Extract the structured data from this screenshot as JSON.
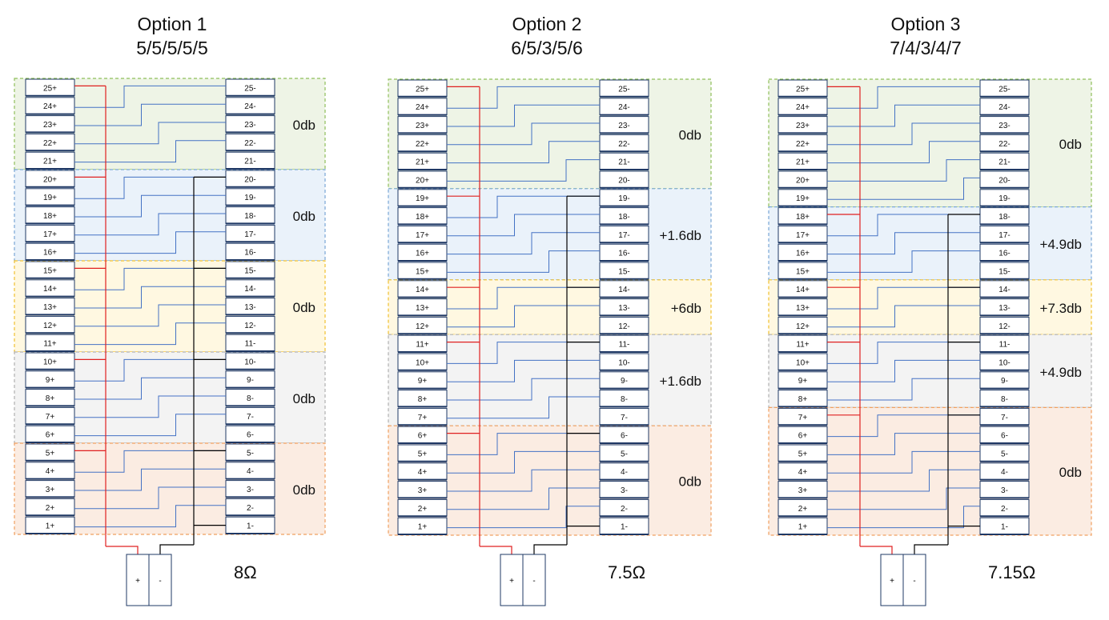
{
  "options": [
    {
      "title": "Option 1",
      "pattern": "5/5/5/5/5",
      "impedance": "8Ω",
      "groups": [
        {
          "size": 5,
          "gain": "0db",
          "color": "green"
        },
        {
          "size": 5,
          "gain": "0db",
          "color": "blue"
        },
        {
          "size": 5,
          "gain": "0db",
          "color": "yellow"
        },
        {
          "size": 5,
          "gain": "0db",
          "color": "gray"
        },
        {
          "size": 5,
          "gain": "0db",
          "color": "orange"
        }
      ]
    },
    {
      "title": "Option 2",
      "pattern": "6/5/3/5/6",
      "impedance": "7.5Ω",
      "groups": [
        {
          "size": 6,
          "gain": "0db",
          "color": "green"
        },
        {
          "size": 5,
          "gain": "+1.6db",
          "color": "blue"
        },
        {
          "size": 3,
          "gain": "+6db",
          "color": "yellow"
        },
        {
          "size": 5,
          "gain": "+1.6db",
          "color": "gray"
        },
        {
          "size": 6,
          "gain": "0db",
          "color": "orange"
        }
      ]
    },
    {
      "title": "Option 3",
      "pattern": "7/4/3/4/7",
      "impedance": "7.15Ω",
      "groups": [
        {
          "size": 7,
          "gain": "0db",
          "color": "green"
        },
        {
          "size": 4,
          "gain": "+4.9db",
          "color": "blue"
        },
        {
          "size": 3,
          "gain": "+7.3db",
          "color": "yellow"
        },
        {
          "size": 4,
          "gain": "+4.9db",
          "color": "gray"
        },
        {
          "size": 7,
          "gain": "0db",
          "color": "orange"
        }
      ]
    }
  ],
  "terminal_count": 25,
  "amp_labels": {
    "plus": "+",
    "minus": "-"
  },
  "colors": {
    "green": {
      "fill": "#eef4e6",
      "stroke": "#8fbf5a"
    },
    "blue": {
      "fill": "#eaf2fa",
      "stroke": "#7aa7d6"
    },
    "yellow": {
      "fill": "#fff8e1",
      "stroke": "#f0c030"
    },
    "gray": {
      "fill": "#f3f3f3",
      "stroke": "#b0b0b0"
    },
    "orange": {
      "fill": "#fbece2",
      "stroke": "#f0a060"
    },
    "terminal_stroke": "#1f3864",
    "blue_wire": "#4472c4",
    "red_wire": "#e02020",
    "black_wire": "#000000"
  }
}
